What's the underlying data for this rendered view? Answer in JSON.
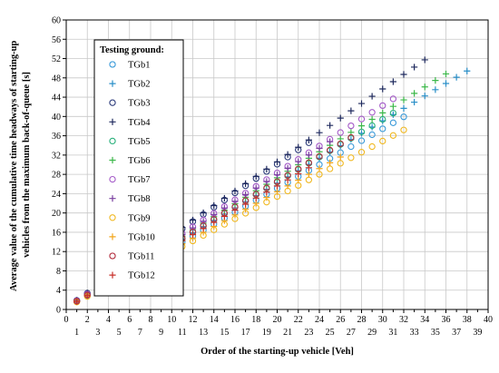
{
  "chart_data": {
    "type": "scatter",
    "xlabel": "Order of the starting-up vehicle [Veh]",
    "ylabel_lines": [
      "Average value of the cumulative time headways of starting-up",
      "vehicles from the maximum back-of-queue [s]"
    ],
    "xlim": [
      0,
      40
    ],
    "ylim": [
      0,
      60
    ],
    "x_major_ticks": [
      0,
      2,
      4,
      6,
      8,
      10,
      12,
      14,
      16,
      18,
      20,
      22,
      24,
      26,
      28,
      30,
      32,
      34,
      36,
      38,
      40
    ],
    "x_minor_ticks": [
      1,
      3,
      5,
      7,
      9,
      11,
      13,
      15,
      17,
      19,
      21,
      23,
      25,
      27,
      29,
      31,
      33,
      35,
      37,
      39
    ],
    "y_ticks": [
      0,
      4,
      8,
      12,
      16,
      20,
      24,
      28,
      32,
      36,
      40,
      44,
      48,
      52,
      56,
      60
    ],
    "grid": true,
    "legend_position": "top-left",
    "legend_title": "Testing ground:",
    "series": [
      {
        "name": "TGb1",
        "marker": "circle",
        "color": "#3a9ad9",
        "n": 32,
        "slope": 1.235,
        "intercept": 0.4
      },
      {
        "name": "TGb2",
        "marker": "plus",
        "color": "#2a8fc8",
        "n": 38,
        "slope": 1.29,
        "intercept": 0.4
      },
      {
        "name": "TGb3",
        "marker": "circle",
        "color": "#2b3a7a",
        "n": 23,
        "slope": 1.485,
        "intercept": 0.4
      },
      {
        "name": "TGb4",
        "marker": "plus",
        "color": "#1f2a5e",
        "n": 34,
        "slope": 1.51,
        "intercept": 0.4
      },
      {
        "name": "TGb5",
        "marker": "circle",
        "color": "#27b07a",
        "n": 31,
        "slope": 1.3,
        "intercept": 0.4
      },
      {
        "name": "TGb6",
        "marker": "plus",
        "color": "#3cb84a",
        "n": 36,
        "slope": 1.345,
        "intercept": 0.4
      },
      {
        "name": "TGb7",
        "marker": "circle",
        "color": "#a45ac8",
        "n": 31,
        "slope": 1.395,
        "intercept": 0.4
      },
      {
        "name": "TGb8",
        "marker": "plus",
        "color": "#7a3fa0",
        "n": 25,
        "slope": 1.375,
        "intercept": 0.4
      },
      {
        "name": "TGb9",
        "marker": "circle",
        "color": "#f0b820",
        "n": 32,
        "slope": 1.15,
        "intercept": 0.4
      },
      {
        "name": "TGb10",
        "marker": "plus",
        "color": "#f2a51c",
        "n": 26,
        "slope": 1.2,
        "intercept": 0.4
      },
      {
        "name": "TGb11",
        "marker": "circle",
        "color": "#b33040",
        "n": 27,
        "slope": 1.305,
        "intercept": 0.4
      },
      {
        "name": "TGb12",
        "marker": "plus",
        "color": "#c8302a",
        "n": 23,
        "slope": 1.26,
        "intercept": 0.4
      }
    ]
  }
}
